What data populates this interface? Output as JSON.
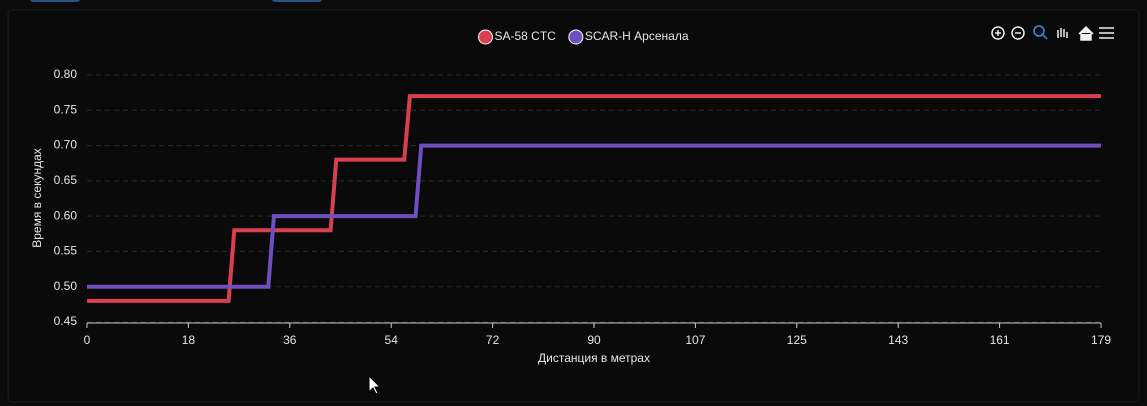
{
  "chart_data": {
    "type": "line",
    "xlabel": "Дистанция в метрах",
    "ylabel": "Время в секундах",
    "series": [
      {
        "name": "SA-58 CTC",
        "color": "#d9404f",
        "x": [
          0,
          25,
          26,
          43,
          44,
          56,
          57,
          179
        ],
        "values": [
          0.48,
          0.48,
          0.58,
          0.58,
          0.68,
          0.68,
          0.77,
          0.77
        ]
      },
      {
        "name": "SCAR-H Арсенала",
        "color": "#6e4fbf",
        "x": [
          0,
          32,
          33,
          58,
          59,
          179
        ],
        "values": [
          0.5,
          0.5,
          0.6,
          0.6,
          0.7,
          0.7
        ]
      }
    ],
    "xlim": [
      0,
      179
    ],
    "xticks": [
      0,
      {
        "value": 17.9,
        "label": "18"
      },
      {
        "value": 35.8,
        "label": "36"
      },
      {
        "value": 53.7,
        "label": "54"
      },
      {
        "value": 71.6,
        "label": "72"
      },
      {
        "value": 89.5,
        "label": "90"
      },
      {
        "value": 107.4,
        "label": "107"
      },
      {
        "value": 125.3,
        "label": "125"
      },
      {
        "value": 143.2,
        "label": "143"
      },
      {
        "value": 161.1,
        "label": "161"
      },
      179
    ],
    "ylim": [
      0.45,
      0.8
    ],
    "yticks": [
      0.45,
      {
        "value": 0.5,
        "label": "0.50"
      },
      0.55,
      {
        "value": 0.6,
        "label": "0.60"
      },
      0.65,
      {
        "value": 0.7,
        "label": "0.70"
      },
      0.75,
      {
        "value": 0.8,
        "label": "0.80"
      }
    ],
    "grid": true
  }
}
